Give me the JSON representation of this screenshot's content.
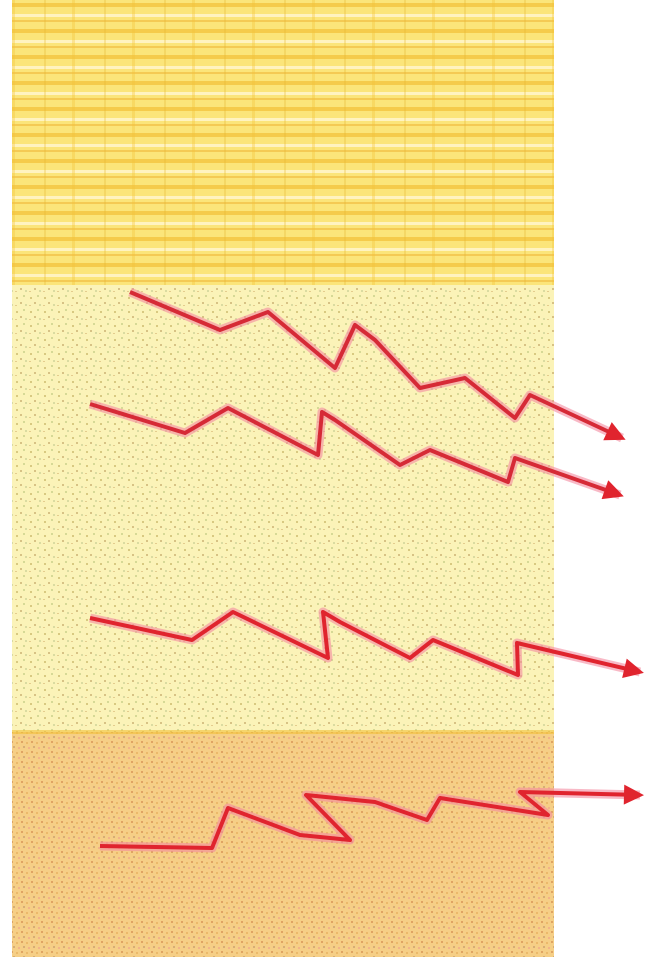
{
  "colors": {
    "background": "#ffffff",
    "band_top": "#fbe57a",
    "band_top_stripe": "#f2c23a",
    "band_middle": "#fbf3b8",
    "band_middle_speckle": "#c9b86a",
    "band_bottom": "#f6cf86",
    "band_bottom_speckle": "#d99a5a",
    "arrow_stroke": "#e0242e",
    "arrow_edge": "#f48aa0"
  },
  "layers": [
    {
      "name": "top-layer",
      "pattern": "horizontal-stripes"
    },
    {
      "name": "middle-layer",
      "pattern": "speckled"
    },
    {
      "name": "bottom-layer",
      "pattern": "dense-speckled"
    }
  ],
  "arrows": [
    {
      "name": "arrow-1",
      "direction": "right-down"
    },
    {
      "name": "arrow-2",
      "direction": "right-down"
    },
    {
      "name": "arrow-3",
      "direction": "right-down"
    },
    {
      "name": "arrow-4",
      "direction": "right"
    }
  ]
}
